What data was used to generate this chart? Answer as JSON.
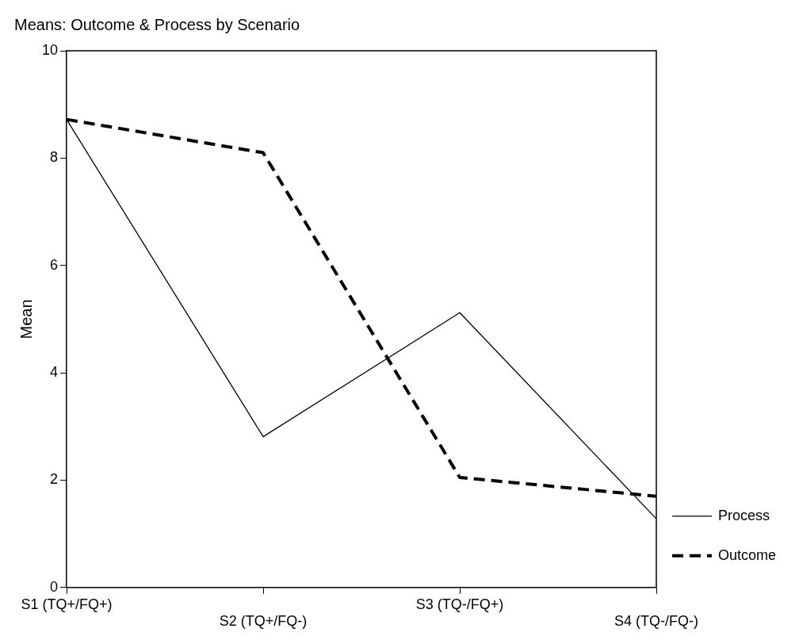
{
  "chart_data": {
    "type": "line",
    "title": "Means: Outcome & Process by Scenario",
    "ylabel": "Mean",
    "categories": [
      "S1 (TQ+/FQ+)",
      "S2 (TQ+/FQ-)",
      "S3 (TQ-/FQ+)",
      "S4 (TQ-/FQ-)"
    ],
    "series": [
      {
        "name": "Process",
        "color": "#000000",
        "line_style": "solid",
        "values": [
          8.72,
          2.81,
          5.12,
          1.28
        ]
      },
      {
        "name": "Outcome",
        "color": "#000000",
        "line_style": "dashed",
        "values": [
          8.72,
          8.1,
          2.05,
          1.7
        ]
      }
    ],
    "ylim": [
      0,
      10
    ],
    "yticks": [
      0,
      2,
      4,
      6,
      8,
      10
    ],
    "grid": false,
    "legend": "right",
    "marker": "none"
  }
}
